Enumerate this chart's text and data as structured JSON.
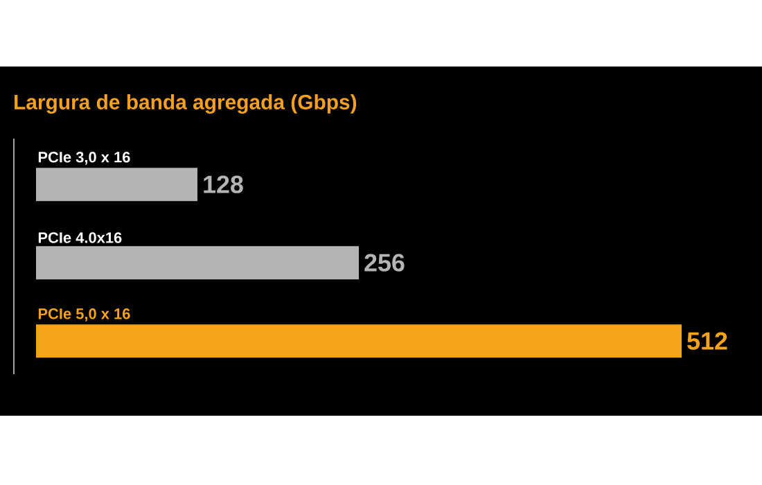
{
  "chart_data": {
    "type": "bar",
    "orientation": "horizontal",
    "title": "Largura de banda agregada (Gbps)",
    "categories": [
      "PCIe 3,0 x 16",
      "PCIe 4.0x16",
      "PCIe 5,0 x 16"
    ],
    "values": [
      128,
      256,
      512
    ],
    "colors": [
      "#b4b4b4",
      "#b4b4b4",
      "#f7a21b"
    ],
    "data_labels": true
  }
}
